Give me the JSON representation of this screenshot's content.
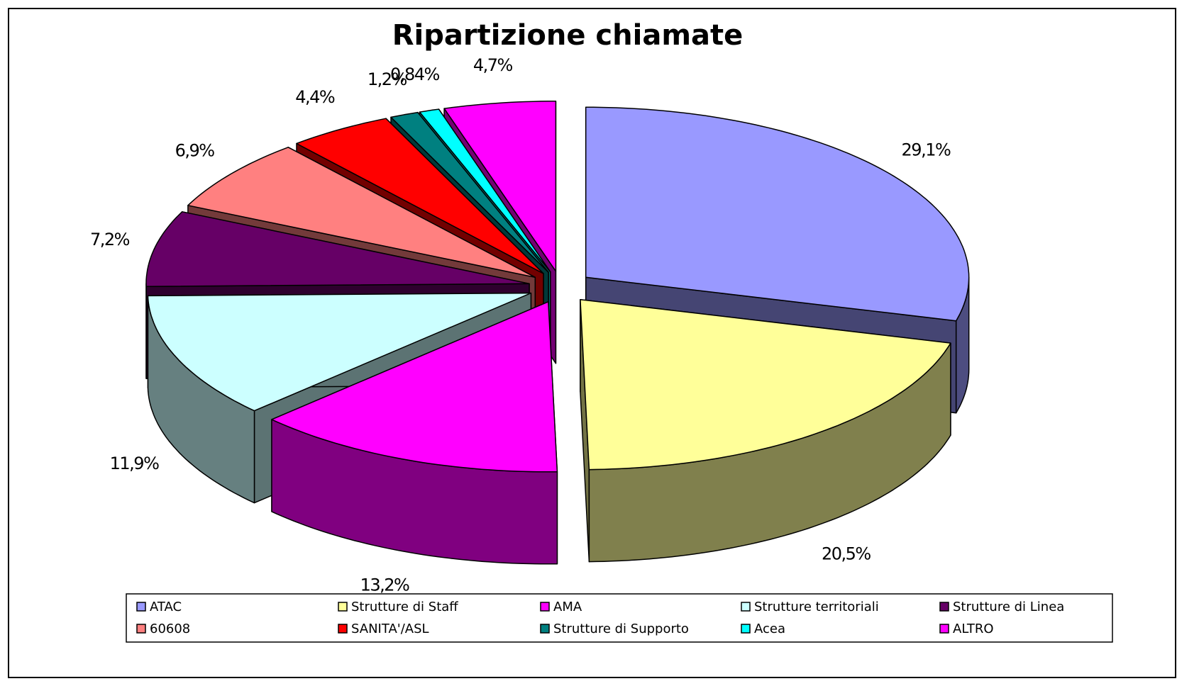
{
  "chart_data": {
    "type": "pie",
    "title": "Ripartizione chiamate",
    "categories": [
      "ATAC",
      "Strutture di Staff",
      "AMA",
      "Strutture territoriali",
      "Strutture di Linea",
      "60608",
      "SANITA'/ASL",
      "Strutture di Supporto",
      "Acea",
      "ALTRO"
    ],
    "values": [
      29.1,
      20.5,
      13.2,
      11.9,
      7.2,
      6.9,
      4.4,
      1.2,
      0.84,
      4.7
    ],
    "value_labels": [
      "29,1%",
      "20,5%",
      "13,2%",
      "11,9%",
      "7,2%",
      "6,9%",
      "4,4%",
      "1,2%",
      "0,84%",
      "4,7%"
    ],
    "colors": [
      "#9999ff",
      "#ffff99",
      "#ff00ff",
      "#ccffff",
      "#660066",
      "#ff8080",
      "#ff0000",
      "#008080",
      "#00ffff",
      "#ff00ff"
    ],
    "legend": "bottom"
  }
}
